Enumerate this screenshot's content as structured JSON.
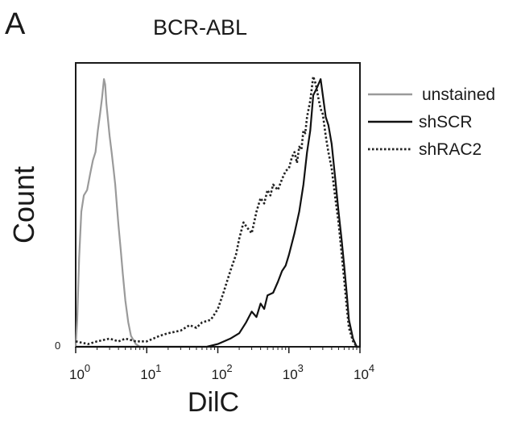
{
  "panel_label": "A",
  "chart_data": {
    "type": "line",
    "title": "BCR-ABL",
    "xlabel": "DilC",
    "ylabel": "Count",
    "x_scale": "log10",
    "xlim": [
      1,
      10000
    ],
    "ylim": [
      0,
      1.05
    ],
    "grid": false,
    "legend_position": "top-right",
    "y_ticks": [
      {
        "value": 0,
        "label": "0"
      }
    ],
    "x_ticks": [
      {
        "value": 1,
        "base": "10",
        "exp": "0"
      },
      {
        "value": 10,
        "base": "10",
        "exp": "1"
      },
      {
        "value": 100,
        "base": "10",
        "exp": "2"
      },
      {
        "value": 1000,
        "base": "10",
        "exp": "3"
      },
      {
        "value": 10000,
        "base": "10",
        "exp": "4"
      }
    ],
    "series": [
      {
        "name": "unstained",
        "color": "#9a9a9a",
        "style": "solid",
        "x": [
          1.0,
          1.05,
          1.12,
          1.2,
          1.3,
          1.45,
          1.6,
          1.75,
          1.9,
          2.05,
          2.2,
          2.35,
          2.5,
          2.6,
          2.7,
          2.85,
          3.0,
          3.2,
          3.4,
          3.6,
          3.8,
          4.0,
          4.3,
          4.6,
          5.0,
          5.5,
          6.0,
          7.0,
          8.0,
          10.0
        ],
        "y": [
          0.0,
          0.1,
          0.33,
          0.5,
          0.56,
          0.58,
          0.64,
          0.69,
          0.72,
          0.8,
          0.86,
          0.92,
          0.99,
          0.97,
          0.9,
          0.84,
          0.78,
          0.72,
          0.66,
          0.6,
          0.52,
          0.45,
          0.36,
          0.27,
          0.17,
          0.09,
          0.04,
          0.01,
          0.0,
          0.0
        ]
      },
      {
        "name": "shSCR",
        "color": "#111111",
        "style": "solid",
        "x": [
          1.0,
          10.0,
          30.0,
          70.0,
          100.0,
          150.0,
          200.0,
          250.0,
          300.0,
          350.0,
          400.0,
          450.0,
          500.0,
          600.0,
          700.0,
          800.0,
          900.0,
          1000.0,
          1200.0,
          1400.0,
          1600.0,
          1800.0,
          2000.0,
          2200.0,
          2500.0,
          2800.0,
          3000.0,
          3300.0,
          3600.0,
          4000.0,
          4500.0,
          5000.0,
          5500.0,
          6000.0,
          6500.0,
          7000.0,
          8000.0,
          9000.0,
          10000.0
        ],
        "y": [
          0.0,
          0.0,
          0.0,
          0.0,
          0.01,
          0.03,
          0.05,
          0.09,
          0.13,
          0.11,
          0.16,
          0.14,
          0.19,
          0.2,
          0.24,
          0.28,
          0.3,
          0.34,
          0.42,
          0.5,
          0.6,
          0.72,
          0.8,
          0.93,
          0.96,
          0.99,
          0.93,
          0.85,
          0.82,
          0.75,
          0.62,
          0.5,
          0.4,
          0.3,
          0.2,
          0.1,
          0.03,
          0.0,
          0.0
        ]
      },
      {
        "name": "shRAC2",
        "color": "#222222",
        "style": "dotted",
        "x": [
          1.0,
          1.5,
          2.0,
          3.0,
          4.0,
          5.0,
          7.0,
          10.0,
          15.0,
          20.0,
          30.0,
          40.0,
          50.0,
          60.0,
          80.0,
          100.0,
          120.0,
          150.0,
          180.0,
          200.0,
          230.0,
          260.0,
          300.0,
          350.0,
          400.0,
          450.0,
          500.0,
          550.0,
          600.0,
          700.0,
          800.0,
          900.0,
          1000.0,
          1100.0,
          1200.0,
          1300.0,
          1400.0,
          1500.0,
          1600.0,
          1700.0,
          1800.0,
          2000.0,
          2200.0,
          2400.0,
          2600.0,
          2800.0,
          3000.0,
          3300.0,
          3600.0,
          4000.0,
          4500.0,
          5000.0,
          5500.0,
          6000.0,
          6500.0,
          7000.0,
          8000.0,
          9000.0,
          10000.0
        ],
        "y": [
          0.02,
          0.01,
          0.02,
          0.03,
          0.02,
          0.03,
          0.02,
          0.02,
          0.04,
          0.05,
          0.06,
          0.08,
          0.07,
          0.09,
          0.1,
          0.14,
          0.2,
          0.28,
          0.34,
          0.4,
          0.46,
          0.44,
          0.42,
          0.5,
          0.55,
          0.53,
          0.58,
          0.56,
          0.6,
          0.58,
          0.62,
          0.65,
          0.66,
          0.7,
          0.72,
          0.68,
          0.74,
          0.73,
          0.8,
          0.79,
          0.85,
          0.91,
          1.0,
          0.97,
          0.92,
          0.88,
          0.86,
          0.78,
          0.72,
          0.66,
          0.55,
          0.46,
          0.35,
          0.25,
          0.15,
          0.07,
          0.02,
          0.0,
          0.0
        ]
      }
    ]
  }
}
